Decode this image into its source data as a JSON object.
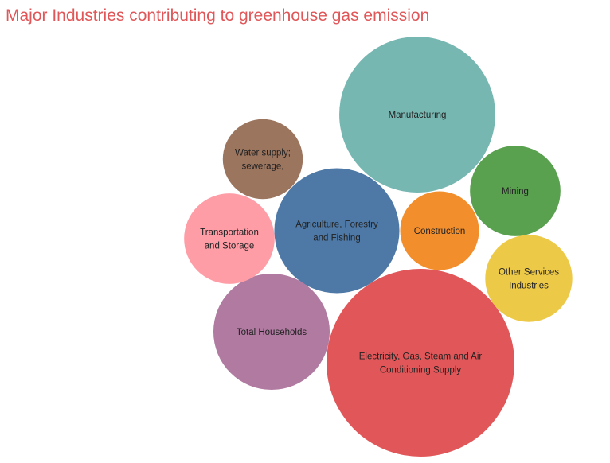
{
  "chart_data": {
    "type": "bubble",
    "title": "Major Industries contributing to greenhouse gas emission",
    "bubbles": [
      {
        "label": [
          "Electricity, Gas, Steam and Air",
          "Conditioning Supply"
        ],
        "relative_size": 1.0,
        "color": "#e15759"
      },
      {
        "label": [
          "Manufacturing"
        ],
        "relative_size": 0.689,
        "color": "#76b7b2"
      },
      {
        "label": [
          "Agriculture, Forestry",
          "and Fishing"
        ],
        "relative_size": 0.443,
        "color": "#4e79a7"
      },
      {
        "label": [
          "Total Households"
        ],
        "relative_size": 0.383,
        "color": "#b07aa1"
      },
      {
        "label": [
          "Other Services",
          "Industries"
        ],
        "relative_size": 0.215,
        "color": "#edc948"
      },
      {
        "label": [
          "Mining"
        ],
        "relative_size": 0.232,
        "color": "#59a14f"
      },
      {
        "label": [
          "Transportation",
          "and Storage"
        ],
        "relative_size": 0.232,
        "color": "#ff9da7"
      },
      {
        "label": [
          "Construction"
        ],
        "relative_size": 0.176,
        "color": "#f28e2b"
      },
      {
        "label": [
          "Water supply;",
          "sewerage,"
        ],
        "relative_size": 0.181,
        "color": "#9c755f"
      }
    ]
  }
}
